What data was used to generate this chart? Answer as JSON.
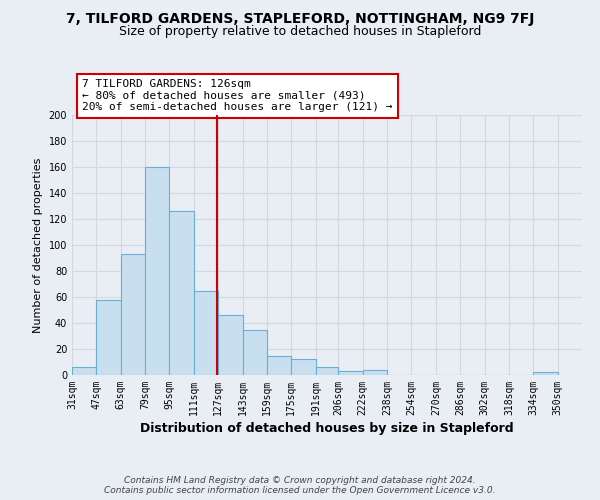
{
  "title": "7, TILFORD GARDENS, STAPLEFORD, NOTTINGHAM, NG9 7FJ",
  "subtitle": "Size of property relative to detached houses in Stapleford",
  "xlabel": "Distribution of detached houses by size in Stapleford",
  "ylabel": "Number of detached properties",
  "bar_left_edges": [
    31,
    47,
    63,
    79,
    95,
    111,
    127,
    143,
    159,
    175,
    191,
    206,
    222,
    238,
    254,
    270,
    286,
    302,
    318,
    334
  ],
  "bar_heights": [
    6,
    58,
    93,
    160,
    126,
    65,
    46,
    35,
    15,
    12,
    6,
    3,
    4,
    0,
    0,
    0,
    0,
    0,
    0,
    2
  ],
  "bar_widths": [
    16,
    16,
    16,
    16,
    16,
    16,
    16,
    16,
    16,
    16,
    15,
    16,
    16,
    16,
    16,
    16,
    16,
    16,
    16,
    16
  ],
  "tick_labels": [
    "31sqm",
    "47sqm",
    "63sqm",
    "79sqm",
    "95sqm",
    "111sqm",
    "127sqm",
    "143sqm",
    "159sqm",
    "175sqm",
    "191sqm",
    "206sqm",
    "222sqm",
    "238sqm",
    "254sqm",
    "270sqm",
    "286sqm",
    "302sqm",
    "318sqm",
    "334sqm",
    "350sqm"
  ],
  "tick_positions": [
    31,
    47,
    63,
    79,
    95,
    111,
    127,
    143,
    159,
    175,
    191,
    206,
    222,
    238,
    254,
    270,
    286,
    302,
    318,
    334,
    350
  ],
  "bar_color": "#c8dff0",
  "bar_edge_color": "#6baed6",
  "vline_x": 126,
  "vline_color": "#cc0000",
  "annotation_line1": "7 TILFORD GARDENS: 126sqm",
  "annotation_line2": "← 80% of detached houses are smaller (493)",
  "annotation_line3": "20% of semi-detached houses are larger (121) →",
  "annotation_box_color": "#ffffff",
  "annotation_box_edge_color": "#cc0000",
  "ylim": [
    0,
    200
  ],
  "yticks": [
    0,
    20,
    40,
    60,
    80,
    100,
    120,
    140,
    160,
    180,
    200
  ],
  "xlim": [
    31,
    366
  ],
  "footer_line1": "Contains HM Land Registry data © Crown copyright and database right 2024.",
  "footer_line2": "Contains public sector information licensed under the Open Government Licence v3.0.",
  "title_fontsize": 10,
  "subtitle_fontsize": 9,
  "xlabel_fontsize": 9,
  "ylabel_fontsize": 8,
  "tick_fontsize": 7,
  "footer_fontsize": 6.5,
  "annotation_fontsize": 8,
  "grid_color": "#d0d8e0",
  "bg_color": "#e8eef4"
}
